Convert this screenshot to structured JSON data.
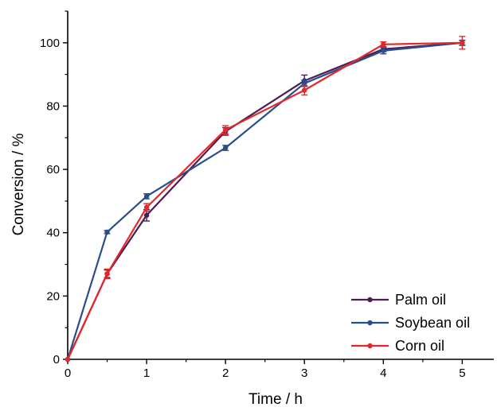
{
  "chart_data": {
    "type": "line",
    "title": "",
    "xlabel": "Time / h",
    "ylabel": "Conversion / %",
    "xlim": [
      0,
      5.4
    ],
    "ylim": [
      0,
      110
    ],
    "x_ticks": [
      0,
      1,
      2,
      3,
      4,
      5
    ],
    "y_ticks": [
      0,
      20,
      40,
      60,
      80,
      100
    ],
    "x_tick_labels": [
      "0",
      "1",
      "2",
      "3",
      "4",
      "5"
    ],
    "y_tick_labels": [
      "0",
      "20",
      "40",
      "60",
      "80",
      "100"
    ],
    "grid": false,
    "legend_position": "bottom-right",
    "series": [
      {
        "name": "Palm oil",
        "color": "#4b1d52",
        "x": [
          0,
          0.5,
          1,
          2,
          3,
          4,
          5
        ],
        "y": [
          0,
          27,
          45.5,
          72,
          88,
          98,
          100
        ],
        "err": [
          0,
          1.2,
          1.8,
          1.2,
          1.8,
          0.8,
          0.8
        ]
      },
      {
        "name": "Soybean oil",
        "color": "#2a4e8c",
        "x": [
          0,
          0.5,
          1,
          2,
          3,
          4,
          5
        ],
        "y": [
          0,
          40.2,
          51.5,
          66.8,
          87.2,
          97.5,
          100
        ],
        "err": [
          0,
          0.5,
          0.8,
          0.8,
          1.0,
          1.0,
          0.8
        ]
      },
      {
        "name": "Corn oil",
        "color": "#e4282a",
        "x": [
          0,
          0.5,
          1,
          2,
          3,
          4,
          5
        ],
        "y": [
          0,
          27,
          48,
          72.5,
          85,
          99.5,
          100
        ],
        "err": [
          0,
          1.5,
          1.2,
          1.3,
          1.5,
          0.8,
          2.0
        ]
      }
    ]
  }
}
